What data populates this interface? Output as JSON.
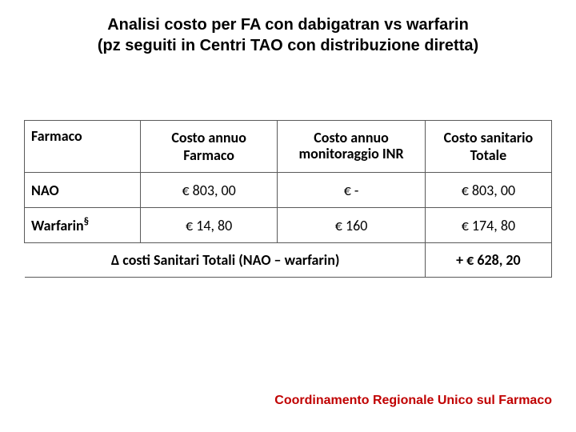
{
  "title_line1": "Analisi costo per FA con dabigatran vs warfarin",
  "title_line2": "(pz seguiti in Centri TAO con distribuzione diretta)",
  "headers": {
    "farmaco": "Farmaco",
    "costo_farmaco_l1": "Costo annuo",
    "costo_farmaco_l2": "Farmaco",
    "costo_inr_l1": "Costo annuo",
    "costo_inr_l2": "monitoraggio INR",
    "costo_totale_l1": "Costo sanitario",
    "costo_totale_l2": "Totale"
  },
  "rows": [
    {
      "label": "NAO",
      "sup": "",
      "c1": "€ 803, 00",
      "c2": "€ -",
      "c3": "€ 803, 00"
    },
    {
      "label": "Warfarin",
      "sup": "§",
      "c1": "€ 14, 80",
      "c2": "€ 160",
      "c3": "€ 174, 80"
    }
  ],
  "delta": {
    "label": "Δ costi Sanitari Totali (NAO – warfarin)",
    "value": "+ € 628, 20"
  },
  "footer": "Coordinamento Regionale Unico sul Farmaco",
  "colors": {
    "title": "#000000",
    "footer": "#c00000",
    "border": "#5a5a5a",
    "background": "#ffffff"
  }
}
